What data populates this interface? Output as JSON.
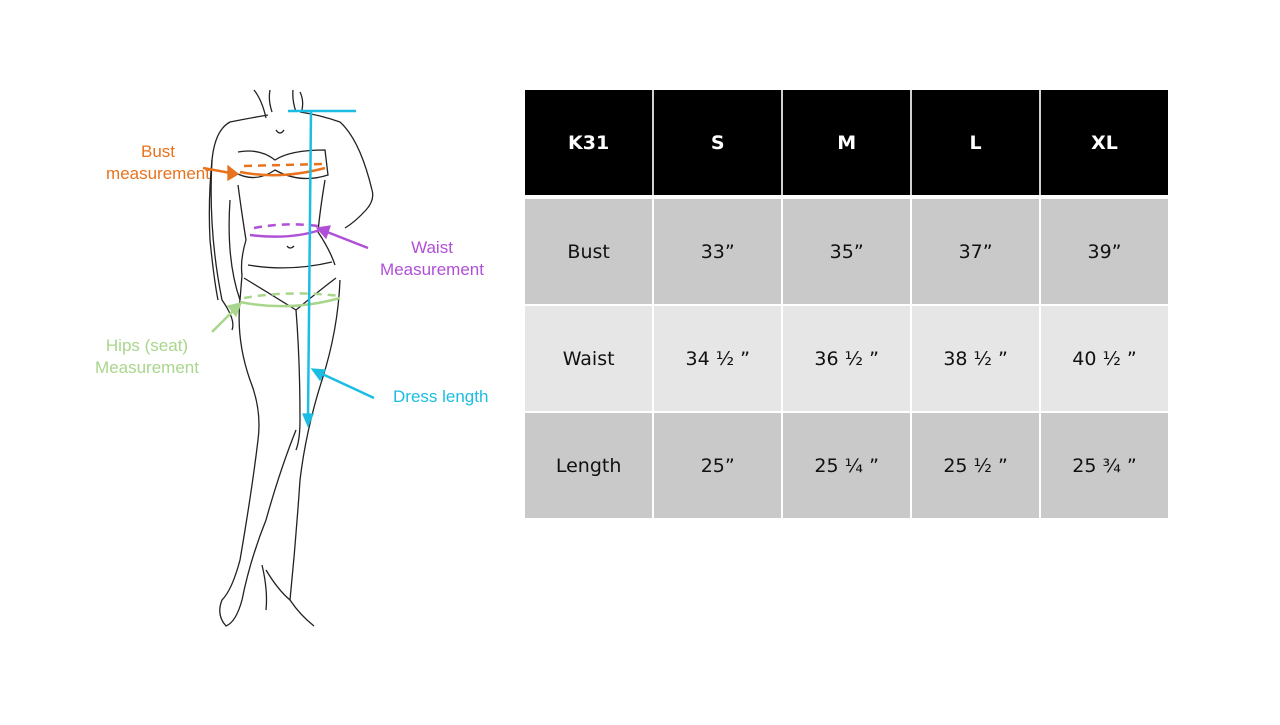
{
  "labels": {
    "bust": [
      "Bust",
      "measurement"
    ],
    "waist": [
      "Waist",
      "Measurement"
    ],
    "hips": [
      "Hips (seat)",
      "Measurement"
    ],
    "length": "Dress length"
  },
  "colors": {
    "bust": "#e8731e",
    "waist": "#b04fd8",
    "hips": "#a8d68c",
    "length": "#1cbde2",
    "header_bg": "#000000",
    "row_dark": "#c9c9c9",
    "row_light": "#e6e6e6"
  },
  "table": {
    "headers": [
      "K31",
      "S",
      "M",
      "L",
      "XL"
    ],
    "rows": [
      {
        "label": "Bust",
        "values": [
          "33”",
          "35”",
          "37”",
          "39”"
        ]
      },
      {
        "label": "Waist",
        "values": [
          "34 ½ ”",
          "36 ½ ”",
          "38 ½ ”",
          "40 ½ ”"
        ]
      },
      {
        "label": "Length",
        "values": [
          "25”",
          "25 ¼ ”",
          "25 ½ ”",
          "25 ¾ ”"
        ]
      }
    ]
  }
}
